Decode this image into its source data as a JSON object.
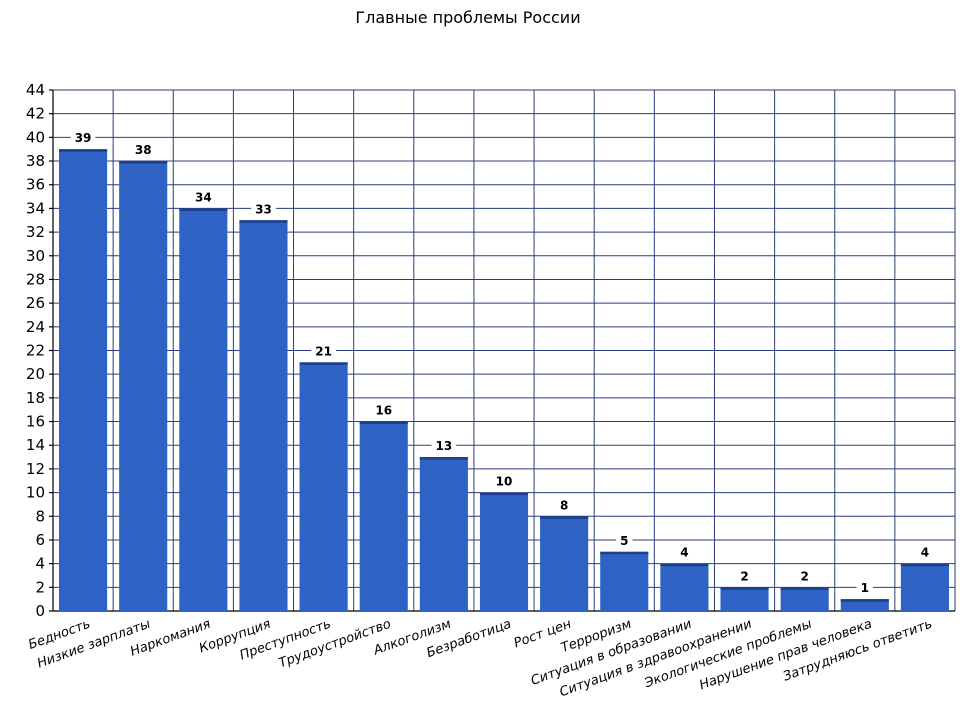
{
  "chart_data": {
    "type": "bar",
    "title": "Главные проблемы России",
    "xlabel": "",
    "ylabel": "",
    "ylim": [
      0,
      44
    ],
    "ytick_step": 2,
    "grid": true,
    "bar_color": "#2e62c4",
    "grid_color": "#2c3e7a",
    "categories": [
      "Бедность",
      "Низкие зарплаты",
      "Наркомания",
      "Коррупция",
      "Преступность",
      "Трудоустройство",
      "Алкоголизм",
      "Безработица",
      "Рост цен",
      "Терроризм",
      "Ситуация в образовании",
      "Ситуация в здравоохранении",
      "Экологические проблемы",
      "Нарушение прав человека",
      "Затрудняюсь ответить"
    ],
    "values": [
      39,
      38,
      34,
      33,
      21,
      16,
      13,
      10,
      8,
      5,
      4,
      2,
      2,
      1,
      4
    ]
  }
}
